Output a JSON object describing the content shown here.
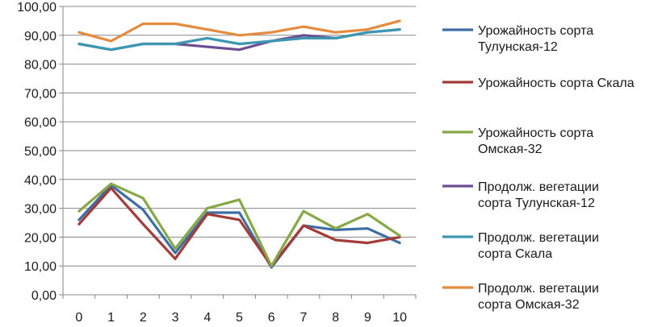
{
  "chart_data": {
    "type": "line",
    "title": "",
    "xlabel": "",
    "ylabel": "",
    "x": [
      0,
      1,
      2,
      3,
      4,
      5,
      6,
      7,
      8,
      9,
      10
    ],
    "ylim": [
      0,
      100
    ],
    "y_ticks": [
      "0,00",
      "10,00",
      "20,00",
      "30,00",
      "40,00",
      "50,00",
      "60,00",
      "70,00",
      "80,00",
      "90,00",
      "100,00"
    ],
    "x_ticks": [
      "0",
      "1",
      "2",
      "3",
      "4",
      "5",
      "6",
      "7",
      "8",
      "9",
      "10"
    ],
    "grid": "horizontal",
    "legend_position": "right",
    "series": [
      {
        "name_lines": [
          "Урожайность сорта",
          "Тулунская-12"
        ],
        "color": "#3d6da5",
        "values": [
          26,
          38,
          29.5,
          14.5,
          28.5,
          28.5,
          9.5,
          24,
          22.5,
          23,
          18
        ]
      },
      {
        "name_lines": [
          "Урожайность сорта Скала"
        ],
        "color": "#a33b38",
        "values": [
          24.5,
          37,
          24.5,
          12.5,
          28,
          26,
          10,
          24,
          19,
          18,
          20
        ]
      },
      {
        "name_lines": [
          "Урожайность сорта",
          "Омская-32"
        ],
        "color": "#86a846",
        "values": [
          29,
          38.5,
          33.5,
          16,
          30,
          33,
          10,
          29,
          23,
          28,
          20.5
        ]
      },
      {
        "name_lines": [
          "Продолж. вегетации",
          "сорта Тулунская-12"
        ],
        "color": "#6c4e93",
        "values": [
          87,
          85,
          87,
          87,
          86,
          85,
          88,
          90,
          89,
          91,
          92
        ]
      },
      {
        "name_lines": [
          "Продолж. вегетации",
          "сорта Скала"
        ],
        "color": "#3c98b1",
        "values": [
          87,
          85,
          87,
          87,
          89,
          87,
          88,
          89,
          89,
          91,
          92
        ]
      },
      {
        "name_lines": [
          "Продолж. вегетации",
          "сорта Омская-32"
        ],
        "color": "#e68a3d",
        "values": [
          91,
          88,
          94,
          94,
          92,
          90,
          91,
          93,
          91,
          92,
          95
        ]
      }
    ]
  }
}
